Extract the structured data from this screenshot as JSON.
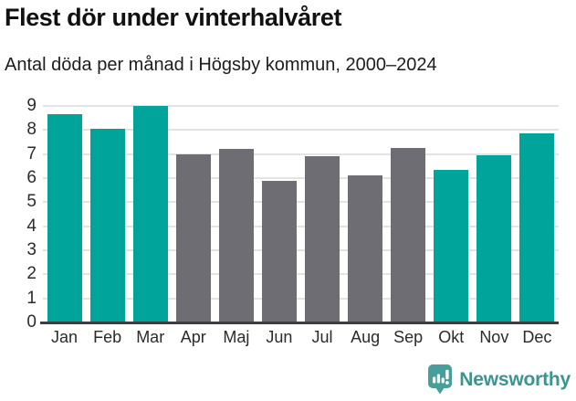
{
  "header": {
    "title": "Flest dör under vinterhalvåret",
    "subtitle": "Antal döda per månad i Högsby kommun, 2000–2024"
  },
  "chart_data": {
    "type": "bar",
    "title": "Flest dör under vinterhalvåret",
    "subtitle": "Antal döda per månad i Högsby kommun, 2000–2024",
    "categories": [
      "Jan",
      "Feb",
      "Mar",
      "Apr",
      "Maj",
      "Jun",
      "Jul",
      "Aug",
      "Sep",
      "Okt",
      "Nov",
      "Dec"
    ],
    "values": [
      8.65,
      8.05,
      9.0,
      7.0,
      7.2,
      5.9,
      6.9,
      6.1,
      7.25,
      6.35,
      6.95,
      7.85
    ],
    "highlight": [
      true,
      true,
      true,
      false,
      false,
      false,
      false,
      false,
      false,
      true,
      true,
      true
    ],
    "xlabel": "",
    "ylabel": "",
    "ylim": [
      0,
      9
    ],
    "yticks": [
      0,
      1,
      2,
      3,
      4,
      5,
      6,
      7,
      8,
      9
    ],
    "grid": "horizontal",
    "legend": "none",
    "colors": {
      "highlight": "#00a49b",
      "default": "#6d6d73",
      "gridline": "#e3e3e3",
      "axis": "#3e3e42"
    }
  },
  "footer": {
    "brand": "Newsworthy",
    "logo_icon": "bar-chart-speech-bubble-icon",
    "brand_color": "#3b948e",
    "icon_color": "#46a099"
  }
}
